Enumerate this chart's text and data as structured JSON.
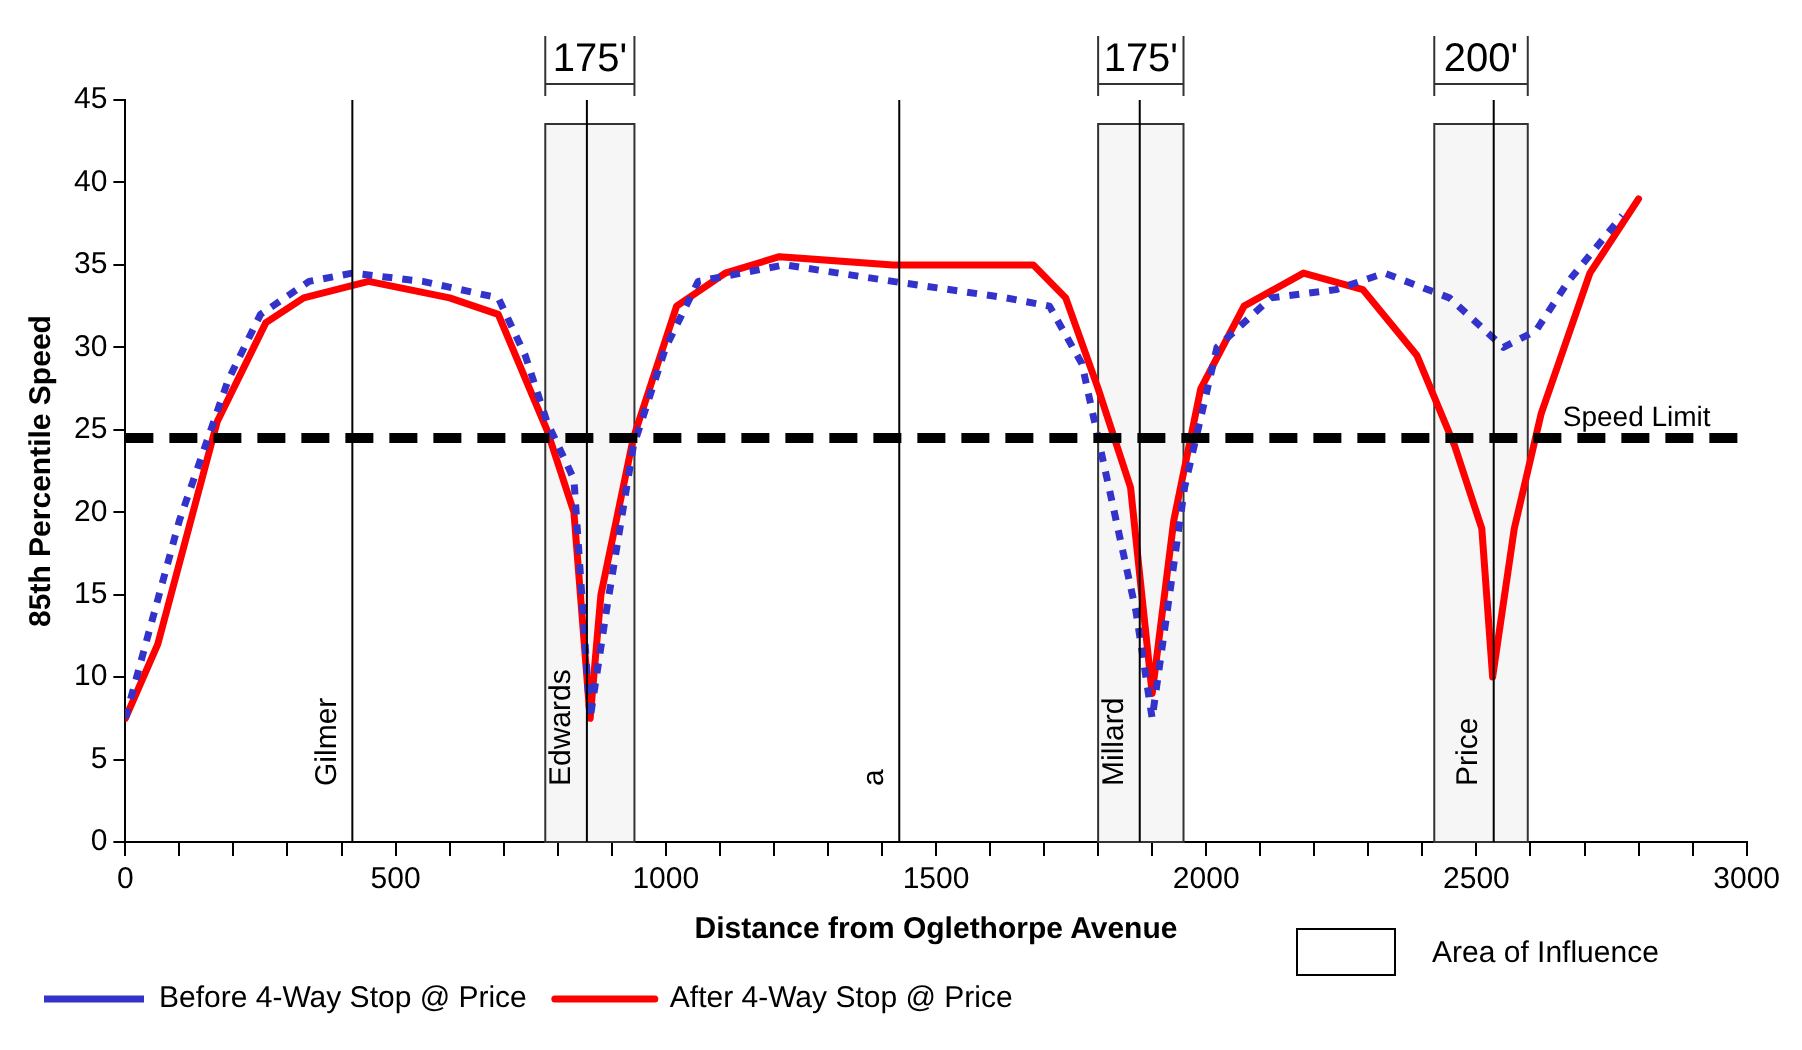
{
  "chart_data": {
    "type": "line",
    "xlabel": "Distance from Oglethorpe Avenue",
    "ylabel": "85th Percentile Speed",
    "series": [
      {
        "name": "Before 4-Way Stop @ Price",
        "color": "#3333cc",
        "line_style": "dotted",
        "x": [
          0,
          100,
          190,
          250,
          340,
          420,
          550,
          690,
          740,
          780,
          830,
          860,
          890,
          940,
          1000,
          1060,
          1220,
          1420,
          1630,
          1710,
          1770,
          1870,
          1900,
          1960,
          2020,
          2120,
          2240,
          2330,
          2450,
          2550,
          2610,
          2670,
          2770
        ],
        "values": [
          7.5,
          19.5,
          28,
          32,
          34,
          34.5,
          34,
          33,
          29.5,
          25.5,
          22,
          7.5,
          14,
          24,
          30,
          34,
          35,
          34,
          33,
          32.5,
          29,
          14,
          7.5,
          21.5,
          30,
          33,
          33.5,
          34.5,
          33,
          30,
          31,
          34,
          38
        ]
      },
      {
        "name": "After 4-Way Stop @ Price",
        "color": "#ff0000",
        "line_style": "solid",
        "x": [
          0,
          60,
          170,
          260,
          330,
          450,
          600,
          690,
          780,
          830,
          860,
          880,
          940,
          1020,
          1110,
          1210,
          1420,
          1680,
          1740,
          1800,
          1860,
          1900,
          1940,
          1990,
          2070,
          2180,
          2290,
          2390,
          2460,
          2510,
          2530,
          2570,
          2620,
          2710,
          2800
        ],
        "values": [
          7.5,
          12,
          25.5,
          31.5,
          33,
          34,
          33,
          32,
          25,
          20,
          7.5,
          15,
          24.5,
          32.5,
          34.5,
          35.5,
          35,
          35,
          33,
          27.5,
          21.5,
          9,
          19.5,
          27.5,
          32.5,
          34.5,
          33.5,
          29.5,
          24,
          19,
          10,
          19,
          26,
          34.5,
          39
        ]
      }
    ],
    "xlim": [
      0,
      3000
    ],
    "xticks": [
      0,
      {
        "value": 100,
        "label": null
      },
      {
        "value": 200,
        "label": null
      },
      {
        "value": 300,
        "label": null
      },
      {
        "value": 400,
        "label": null
      },
      500,
      {
        "value": 600,
        "label": null
      },
      {
        "value": 700,
        "label": null
      },
      {
        "value": 800,
        "label": null
      },
      {
        "value": 900,
        "label": null
      },
      1000,
      {
        "value": 1100,
        "label": null
      },
      {
        "value": 1200,
        "label": null
      },
      {
        "value": 1300,
        "label": null
      },
      {
        "value": 1400,
        "label": null
      },
      1500,
      {
        "value": 1600,
        "label": null
      },
      {
        "value": 1700,
        "label": null
      },
      {
        "value": 1800,
        "label": null
      },
      {
        "value": 1900,
        "label": null
      },
      2000,
      {
        "value": 2100,
        "label": null
      },
      {
        "value": 2200,
        "label": null
      },
      {
        "value": 2300,
        "label": null
      },
      {
        "value": 2400,
        "label": null
      },
      2500,
      {
        "value": 2600,
        "label": null
      },
      {
        "value": 2700,
        "label": null
      },
      {
        "value": 2800,
        "label": null
      },
      {
        "value": 2900,
        "label": null
      },
      3000
    ],
    "ylim": [
      0,
      45
    ],
    "yticks": [
      0,
      5,
      10,
      15,
      20,
      25,
      30,
      35,
      40,
      45
    ],
    "ref_lines": [
      {
        "axis": "y",
        "value": 24.5,
        "label": "Speed Limit",
        "color": "#000000",
        "line_style": "dashed"
      },
      {
        "axis": "x",
        "value": 420,
        "label": "Gilmer",
        "color": "#000000"
      },
      {
        "axis": "x",
        "value": 854,
        "label": "Edwards",
        "color": "#000000"
      },
      {
        "axis": "x",
        "value": 1432,
        "label": "a",
        "color": "#000000"
      },
      {
        "axis": "x",
        "value": 1877,
        "label": "Millard",
        "color": "#000000"
      },
      {
        "axis": "x",
        "value": 2532,
        "label": "Price",
        "color": "#000000"
      }
    ],
    "bands": [
      {
        "axis": "x",
        "from": 777,
        "to": 942,
        "label": "175'",
        "color": "#f6f6f6"
      },
      {
        "axis": "x",
        "from": 1800,
        "to": 1958,
        "label": "175'",
        "color": "#f6f6f6"
      },
      {
        "axis": "x",
        "from": 2422,
        "to": 2595,
        "label": "200'",
        "color": "#f6f6f6"
      }
    ],
    "annotations": [
      "Area of Influence"
    ],
    "legend": "bottom",
    "grid": false,
    "marker": "none"
  }
}
